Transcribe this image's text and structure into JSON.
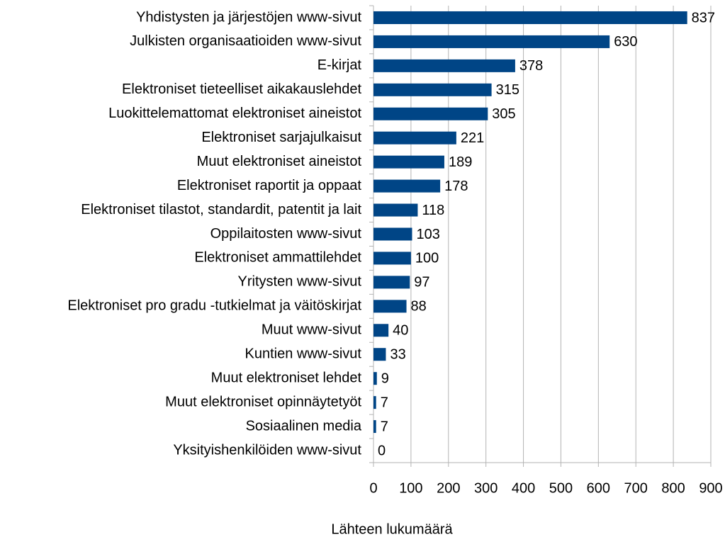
{
  "chart_data": {
    "type": "bar",
    "orientation": "horizontal",
    "xlabel": "Lähteen lukumäärä",
    "categories": [
      "Yhdistysten ja järjestöjen www-sivut",
      "Julkisten organisaatioiden www-sivut",
      "E-kirjat",
      "Elektroniset tieteelliset aikakauslehdet",
      "Luokittelemattomat elektroniset aineistot",
      "Elektroniset sarjajulkaisut",
      "Muut elektroniset aineistot",
      "Elektroniset raportit ja oppaat",
      "Elektroniset tilastot, standardit, patentit ja lait",
      "Oppilaitosten www-sivut",
      "Elektroniset ammattilehdet",
      "Yritysten www-sivut",
      "Elektroniset pro gradu -tutkielmat ja väitöskirjat",
      "Muut www-sivut",
      "Kuntien www-sivut",
      "Muut elektroniset lehdet",
      "Muut elektroniset opinnäytetyöt",
      "Sosiaalinen media",
      "Yksityishenkilöiden www-sivut"
    ],
    "values": [
      837,
      630,
      378,
      315,
      305,
      221,
      189,
      178,
      118,
      103,
      100,
      97,
      88,
      40,
      33,
      9,
      7,
      7,
      0
    ],
    "color": "#004586",
    "xlim": [
      0,
      900
    ],
    "xticks": [
      0,
      100,
      200,
      300,
      400,
      500,
      600,
      700,
      800,
      900
    ],
    "grid": true
  }
}
